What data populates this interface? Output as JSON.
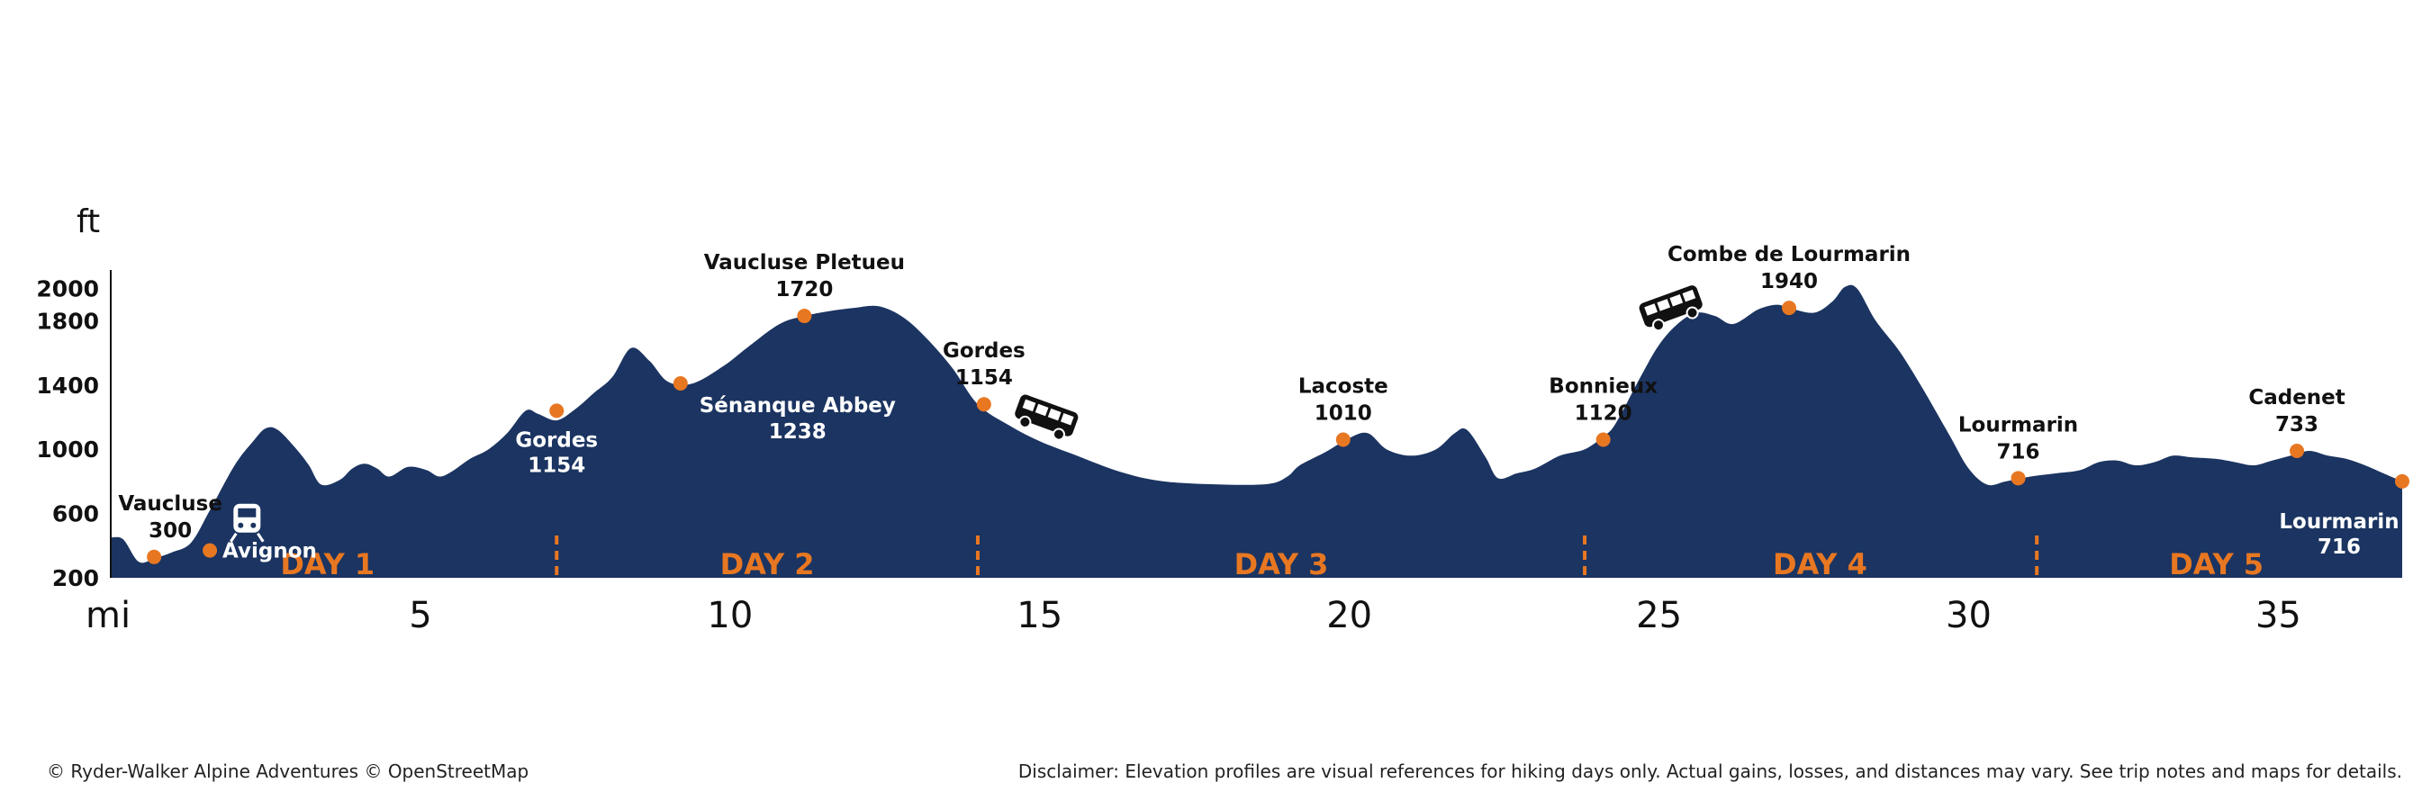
{
  "colors": {
    "profile": "#1b3461",
    "accent": "#e87722",
    "axis": "#111111"
  },
  "footer": {
    "copyright": "© Ryder-Walker Alpine Adventures © OpenStreetMap",
    "disclaimer": "Disclaimer: Elevation profiles are visual references for hiking days only. Actual gains, losses, and distances may vary. See trip notes and maps for details."
  },
  "chart_data": {
    "type": "area",
    "y_unit": "ft",
    "x_unit": "mi",
    "xlim": [
      0,
      37
    ],
    "ylim": [
      200,
      2200
    ],
    "yticks": [
      200,
      600,
      1000,
      1400,
      1800,
      2000
    ],
    "xticks": [
      5,
      10,
      15,
      20,
      25,
      30,
      35
    ],
    "profile": [
      [
        0,
        450
      ],
      [
        0.2,
        440
      ],
      [
        0.45,
        300
      ],
      [
        0.7,
        320
      ],
      [
        1.0,
        360
      ],
      [
        1.3,
        420
      ],
      [
        1.6,
        620
      ],
      [
        2.0,
        900
      ],
      [
        2.3,
        1050
      ],
      [
        2.5,
        1130
      ],
      [
        2.7,
        1120
      ],
      [
        3.0,
        1000
      ],
      [
        3.2,
        900
      ],
      [
        3.4,
        780
      ],
      [
        3.7,
        810
      ],
      [
        3.9,
        880
      ],
      [
        4.1,
        910
      ],
      [
        4.3,
        880
      ],
      [
        4.5,
        830
      ],
      [
        4.8,
        890
      ],
      [
        5.1,
        870
      ],
      [
        5.3,
        830
      ],
      [
        5.5,
        860
      ],
      [
        5.8,
        940
      ],
      [
        6.1,
        1000
      ],
      [
        6.4,
        1100
      ],
      [
        6.7,
        1240
      ],
      [
        6.9,
        1220
      ],
      [
        7.2,
        1180
      ],
      [
        7.5,
        1250
      ],
      [
        7.8,
        1350
      ],
      [
        8.1,
        1450
      ],
      [
        8.4,
        1630
      ],
      [
        8.7,
        1550
      ],
      [
        9.0,
        1420
      ],
      [
        9.4,
        1410
      ],
      [
        9.9,
        1520
      ],
      [
        10.3,
        1640
      ],
      [
        10.8,
        1780
      ],
      [
        11.2,
        1830
      ],
      [
        11.6,
        1860
      ],
      [
        12.0,
        1880
      ],
      [
        12.4,
        1890
      ],
      [
        12.8,
        1820
      ],
      [
        13.2,
        1680
      ],
      [
        13.6,
        1500
      ],
      [
        14.0,
        1280
      ],
      [
        14.5,
        1150
      ],
      [
        15.0,
        1050
      ],
      [
        15.6,
        960
      ],
      [
        16.3,
        860
      ],
      [
        17.0,
        800
      ],
      [
        18.0,
        780
      ],
      [
        18.7,
        785
      ],
      [
        19.0,
        830
      ],
      [
        19.2,
        900
      ],
      [
        19.6,
        980
      ],
      [
        20.0,
        1070
      ],
      [
        20.3,
        1100
      ],
      [
        20.6,
        1000
      ],
      [
        21.0,
        960
      ],
      [
        21.4,
        1000
      ],
      [
        21.7,
        1100
      ],
      [
        21.9,
        1120
      ],
      [
        22.2,
        950
      ],
      [
        22.4,
        820
      ],
      [
        22.7,
        850
      ],
      [
        23.0,
        880
      ],
      [
        23.4,
        960
      ],
      [
        23.8,
        1000
      ],
      [
        24.1,
        1080
      ],
      [
        24.3,
        1160
      ],
      [
        24.7,
        1450
      ],
      [
        25.0,
        1650
      ],
      [
        25.3,
        1780
      ],
      [
        25.6,
        1850
      ],
      [
        25.9,
        1830
      ],
      [
        26.2,
        1780
      ],
      [
        26.6,
        1870
      ],
      [
        26.9,
        1900
      ],
      [
        27.1,
        1880
      ],
      [
        27.5,
        1850
      ],
      [
        27.8,
        1920
      ],
      [
        28.0,
        2010
      ],
      [
        28.2,
        2000
      ],
      [
        28.5,
        1800
      ],
      [
        28.9,
        1600
      ],
      [
        29.3,
        1350
      ],
      [
        29.7,
        1080
      ],
      [
        30.0,
        880
      ],
      [
        30.3,
        780
      ],
      [
        30.6,
        800
      ],
      [
        31.0,
        830
      ],
      [
        31.4,
        850
      ],
      [
        31.8,
        870
      ],
      [
        32.1,
        920
      ],
      [
        32.4,
        930
      ],
      [
        32.7,
        900
      ],
      [
        33.0,
        920
      ],
      [
        33.3,
        960
      ],
      [
        33.6,
        950
      ],
      [
        34.0,
        940
      ],
      [
        34.3,
        920
      ],
      [
        34.6,
        900
      ],
      [
        34.9,
        930
      ],
      [
        35.2,
        960
      ],
      [
        35.5,
        990
      ],
      [
        35.8,
        960
      ],
      [
        36.1,
        940
      ],
      [
        36.4,
        900
      ],
      [
        36.7,
        850
      ],
      [
        37.0,
        800
      ]
    ],
    "points": [
      {
        "name": "Vaucluse",
        "elev": "300",
        "x": 0.7,
        "y": 330,
        "on": "light"
      },
      {
        "name": "Avignon",
        "elev": "",
        "x": 1.6,
        "y": 370,
        "on": "dark"
      },
      {
        "name": "Gordes",
        "elev": "1154",
        "x": 7.2,
        "y": 1240,
        "on": "dark"
      },
      {
        "name": "Sénanque Abbey",
        "elev": "1238",
        "x": 9.2,
        "y": 1410,
        "on": "dark"
      },
      {
        "name": "Vaucluse Pletueu",
        "elev": "1720",
        "x": 11.2,
        "y": 1830,
        "on": "light"
      },
      {
        "name": "Gordes",
        "elev": "1154",
        "x": 14.1,
        "y": 1280,
        "on": "light"
      },
      {
        "name": "Lacoste",
        "elev": "1010",
        "x": 19.9,
        "y": 1060,
        "on": "light"
      },
      {
        "name": "Bonnieux",
        "elev": "1120",
        "x": 24.1,
        "y": 1060,
        "on": "light"
      },
      {
        "name": "Combe de Lourmarin",
        "elev": "1940",
        "x": 27.1,
        "y": 1880,
        "on": "light"
      },
      {
        "name": "Lourmarin",
        "elev": "716",
        "x": 30.8,
        "y": 820,
        "on": "light"
      },
      {
        "name": "Cadenet",
        "elev": "733",
        "x": 35.3,
        "y": 990,
        "on": "light"
      },
      {
        "name": "Lourmarin",
        "elev": "716",
        "x": 37.0,
        "y": 800,
        "on": "dark"
      }
    ],
    "days": [
      {
        "label": "DAY 1",
        "x": 3.5
      },
      {
        "label": "DAY 2",
        "x": 10.6
      },
      {
        "label": "DAY 3",
        "x": 18.9
      },
      {
        "label": "DAY 4",
        "x": 27.6
      },
      {
        "label": "DAY 5",
        "x": 34.0
      }
    ],
    "day_breaks": [
      7.2,
      14.0,
      23.8,
      31.1
    ],
    "icons": [
      {
        "type": "train-icon",
        "x": 2.2,
        "y": 560
      },
      {
        "type": "bus-icon",
        "x": 15.1,
        "y": 1200
      },
      {
        "type": "bus-icon",
        "x": 25.2,
        "y": 1880
      }
    ]
  }
}
